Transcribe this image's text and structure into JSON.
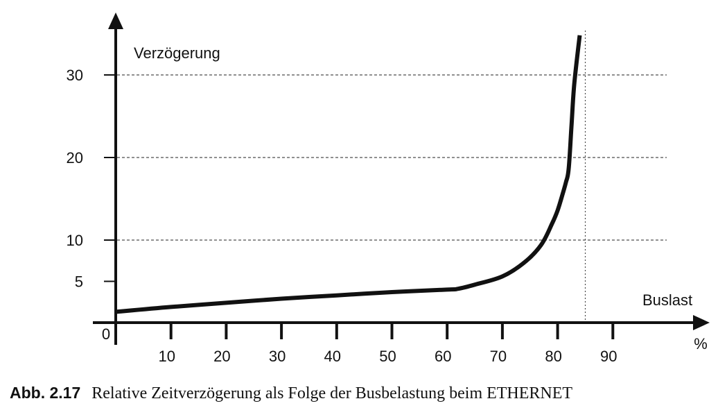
{
  "chart_data": {
    "type": "line",
    "xlabel": "Buslast",
    "xunit": "%",
    "ylabel": "Verzögerung",
    "xlim": [
      0,
      100
    ],
    "ylim": [
      0,
      35
    ],
    "x_ticks": [
      10,
      20,
      30,
      40,
      50,
      60,
      70,
      80,
      90
    ],
    "y_ticks": [
      5,
      10,
      20,
      30
    ],
    "origin_label": "0",
    "grid": "dashed horizontal at 10, 20, 30",
    "reference_line": {
      "x": 85
    },
    "series": [
      {
        "color": "#111111",
        "x": [
          0,
          10,
          20,
          30,
          40,
          50,
          60,
          62,
          65,
          70,
          74,
          77,
          79,
          80,
          81,
          81.5,
          82,
          82.5,
          83,
          84
        ],
        "y": [
          1.3,
          1.9,
          2.4,
          2.9,
          3.3,
          3.7,
          4.0,
          4.1,
          4.6,
          5.6,
          7.3,
          9.4,
          12.0,
          13.6,
          15.8,
          17.0,
          18.6,
          23.7,
          28.8,
          34.8
        ]
      }
    ]
  },
  "caption": {
    "number": "Abb. 2.17",
    "text": "Relative Zeitverzögerung als Folge der Busbelastung beim ETHERNET"
  }
}
